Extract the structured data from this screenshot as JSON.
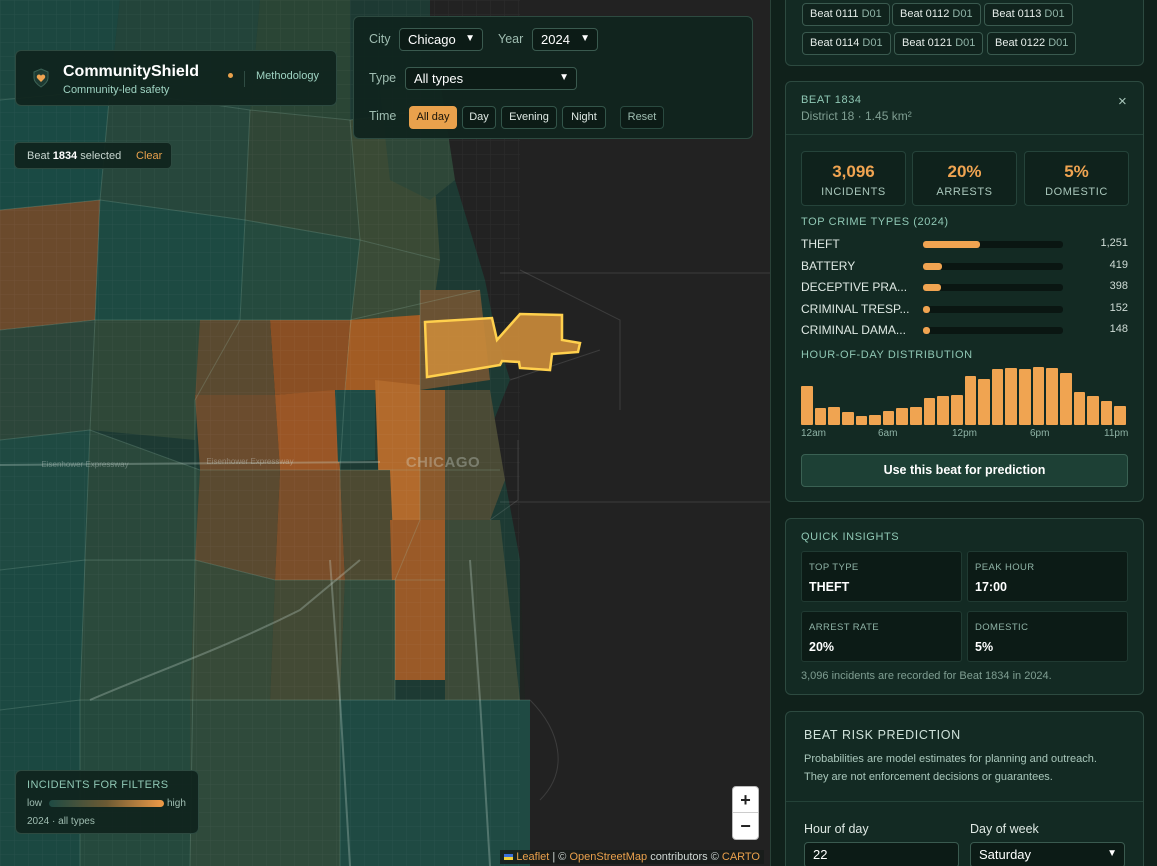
{
  "brand": {
    "name": "CommunityShield",
    "tagline": "Community-led safety",
    "methodology": "Methodology"
  },
  "filters": {
    "city_label": "City",
    "city_value": "Chicago",
    "year_label": "Year",
    "year_value": "2024",
    "type_label": "Type",
    "type_value": "All types",
    "time_label": "Time",
    "time_options": [
      "All day",
      "Day",
      "Evening",
      "Night"
    ],
    "time_selected": "All day",
    "reset": "Reset"
  },
  "selection": {
    "prefix": "Beat",
    "beat": "1834",
    "suffix": "selected",
    "clear": "Clear"
  },
  "map": {
    "city_label": "CHICAGO",
    "road_labels": [
      "Eisenhower Expressway",
      "Eisenhower Expressway"
    ]
  },
  "legend": {
    "title": "INCIDENTS FOR FILTERS",
    "low": "low",
    "high": "high",
    "subtitle": "2024 · all types"
  },
  "zoom": {
    "in": "+",
    "out": "−"
  },
  "attribution": {
    "leaflet": "Leaflet",
    "sep1": "|",
    "copyright1": "©",
    "osm": "OpenStreetMap",
    "contributors": "contributors ©",
    "carto": "CARTO"
  },
  "beat_chips": [
    {
      "beat": "Beat 0111",
      "district": "D01"
    },
    {
      "beat": "Beat 0112",
      "district": "D01"
    },
    {
      "beat": "Beat 0113",
      "district": "D01"
    },
    {
      "beat": "Beat 0114",
      "district": "D01"
    },
    {
      "beat": "Beat 0121",
      "district": "D01"
    },
    {
      "beat": "Beat 0122",
      "district": "D01"
    }
  ],
  "beat_card": {
    "eyebrow": "BEAT 1834",
    "subtitle": "District 18 · 1.45 km²",
    "close": "×",
    "stats": [
      {
        "value": "3,096",
        "label": "INCIDENTS"
      },
      {
        "value": "20%",
        "label": "ARRESTS"
      },
      {
        "value": "5%",
        "label": "DOMESTIC"
      }
    ],
    "top_types_title": "TOP CRIME TYPES (2024)",
    "top_types": [
      {
        "name": "THEFT",
        "count": "1,251",
        "value": 1251
      },
      {
        "name": "BATTERY",
        "count": "419",
        "value": 419
      },
      {
        "name": "DECEPTIVE PRA...",
        "count": "398",
        "value": 398
      },
      {
        "name": "CRIMINAL TRESP...",
        "count": "152",
        "value": 152
      },
      {
        "name": "CRIMINAL DAMA...",
        "count": "148",
        "value": 148
      }
    ],
    "hour_title": "HOUR-OF-DAY DISTRIBUTION",
    "hour_labels": [
      "12am",
      "6am",
      "12pm",
      "6pm",
      "11pm"
    ],
    "use_button": "Use this beat for prediction"
  },
  "chart_data": {
    "type": "bar",
    "categories": [
      "0",
      "1",
      "2",
      "3",
      "4",
      "5",
      "6",
      "7",
      "8",
      "9",
      "10",
      "11",
      "12",
      "13",
      "14",
      "15",
      "16",
      "17",
      "18",
      "19",
      "20",
      "21",
      "22",
      "23"
    ],
    "values": [
      0.69,
      0.29,
      0.31,
      0.22,
      0.16,
      0.18,
      0.25,
      0.29,
      0.31,
      0.47,
      0.51,
      0.53,
      0.85,
      0.8,
      0.98,
      1.0,
      0.98,
      1.02,
      1.0,
      0.91,
      0.58,
      0.51,
      0.42,
      0.33
    ],
    "title": "HOUR-OF-DAY DISTRIBUTION",
    "xlabel": "",
    "ylabel": "",
    "tick_labels": [
      "12am",
      "6am",
      "12pm",
      "6pm",
      "11pm"
    ],
    "ylim": [
      0,
      1.05
    ]
  },
  "insights": {
    "title": "QUICK INSIGHTS",
    "items": [
      {
        "key": "TOP TYPE",
        "value": "THEFT"
      },
      {
        "key": "PEAK HOUR",
        "value": "17:00"
      },
      {
        "key": "ARREST RATE",
        "value": "20%"
      },
      {
        "key": "DOMESTIC",
        "value": "5%"
      }
    ],
    "note": "3,096 incidents are recorded for Beat 1834 in 2024."
  },
  "prediction": {
    "title": "BEAT RISK PREDICTION",
    "desc_line1": "Probabilities are model estimates for planning and outreach.",
    "desc_line2": "They are not enforcement decisions or guarantees.",
    "hour_label": "Hour of day",
    "hour_value": "22",
    "day_label": "Day of week",
    "day_value": "Saturday"
  },
  "colors": {
    "accent": "#f0a451",
    "panel": "#132a23",
    "teal": "#8fc7b4"
  }
}
